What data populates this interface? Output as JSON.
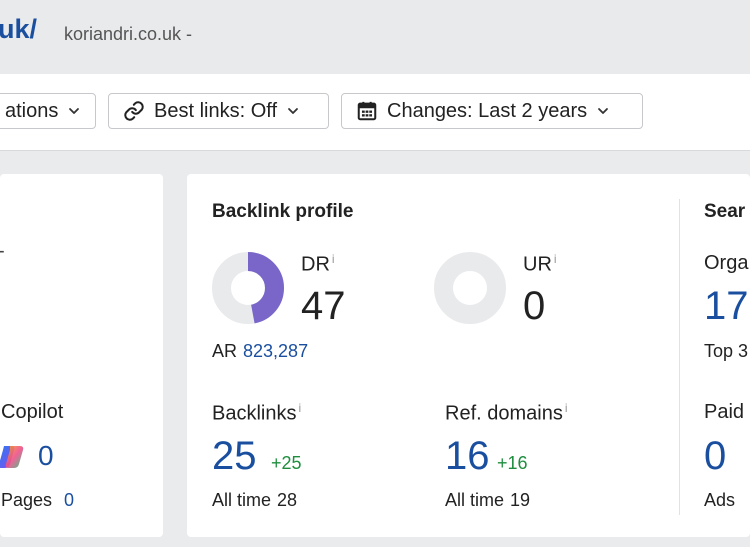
{
  "header": {
    "domain_fragment": "uk/",
    "url": "koriandri.co.uk -"
  },
  "toolbar": {
    "locations_label": "ations",
    "best_links_label": "Best links: Off",
    "changes_label": "Changes: Last 2 years"
  },
  "left_card": {
    "dash": "-",
    "copilot_label": "Copilot",
    "copilot_value": "0",
    "pages_label": "Pages",
    "pages_value": "0"
  },
  "backlink_profile": {
    "title": "Backlink profile",
    "dr": {
      "label": "DR",
      "info": "i",
      "value": "47",
      "fraction": 0.47
    },
    "ur": {
      "label": "UR",
      "info": "i",
      "value": "0",
      "fraction": 0
    },
    "ar_label": "AR",
    "ar_value": "823,287",
    "backlinks": {
      "label": "Backlinks",
      "info": "i",
      "value": "25",
      "delta": "+25",
      "alltime_label": "All time",
      "alltime_value": "28"
    },
    "ref_domains": {
      "label": "Ref. domains",
      "info": "i",
      "value": "16",
      "delta": "+16",
      "alltime_label": "All time",
      "alltime_value": "19"
    }
  },
  "search_card": {
    "title": "Sear",
    "organic_label": "Orga",
    "organic_value": "17",
    "top_label": "Top 3",
    "paid_label": "Paid",
    "paid_value": "0",
    "ads_label": "Ads"
  },
  "colors": {
    "accent": "#1a4fa0",
    "dr_ring": "#7a66c8",
    "ring_track": "#e9eaec",
    "positive": "#1e8e3e"
  }
}
